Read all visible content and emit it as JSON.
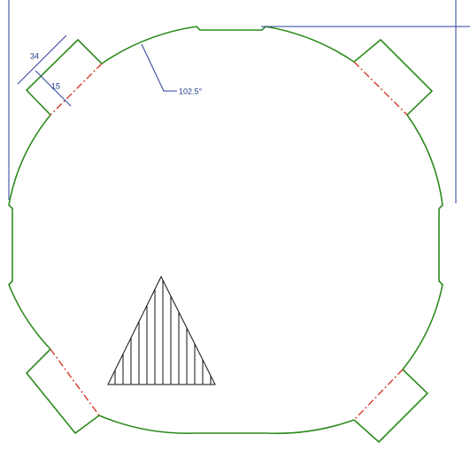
{
  "dimensions": {
    "tab_length": "34",
    "tab_depth": "15",
    "radius": "102.5°"
  }
}
